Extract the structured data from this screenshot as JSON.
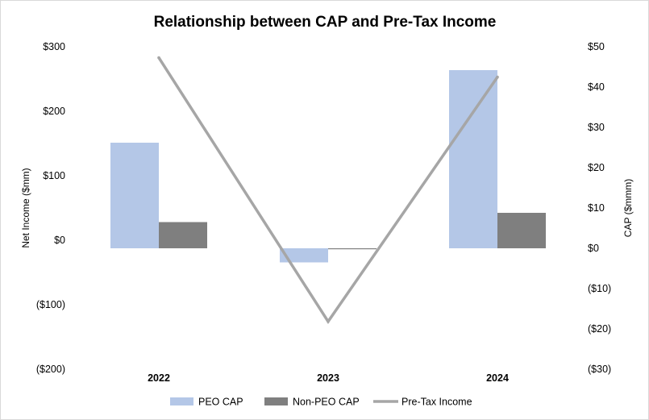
{
  "chart_data": {
    "type": "bar",
    "title": "Relationship between CAP and Pre-Tax Income",
    "categories": [
      "2022",
      "2023",
      "2024"
    ],
    "left_axis": {
      "label": "Net Income ($mm)",
      "range": [
        -200,
        300
      ],
      "ticks": [
        "$300",
        "$200",
        "$100",
        "$0",
        "($100)",
        "($200)"
      ]
    },
    "right_axis": {
      "label": "CAP ($mmm)",
      "range": [
        -30,
        50
      ],
      "ticks": [
        "$50",
        "$40",
        "$30",
        "$20",
        "$10",
        "$0",
        "($10)",
        "($20)",
        "($30)"
      ]
    },
    "series": [
      {
        "name": "PEO CAP",
        "type": "bar",
        "axis": "right",
        "color": "#b4c7e7",
        "values": [
          26.2,
          -3.5,
          44.2
        ]
      },
      {
        "name": "Non-PEO CAP",
        "type": "bar",
        "axis": "right",
        "color": "#7f7f7f",
        "values": [
          6.5,
          -0.1,
          8.8
        ]
      },
      {
        "name": "Pre-Tax Income",
        "type": "line",
        "axis": "left",
        "color": "#a6a6a6",
        "values": [
          283,
          -126,
          253
        ]
      }
    ],
    "legend": {
      "position": "bottom"
    },
    "grid": false
  }
}
